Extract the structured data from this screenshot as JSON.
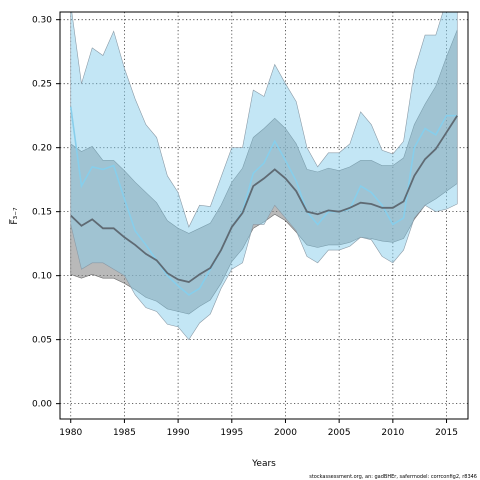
{
  "chart_data": {
    "type": "line",
    "title": "",
    "xlabel": "Years",
    "ylabel": "F̅₃₋₇",
    "xlim": [
      1979,
      2017
    ],
    "ylim": [
      -0.012,
      0.306
    ],
    "x_ticks": [
      1980,
      1985,
      1990,
      1995,
      2000,
      2005,
      2010,
      2015
    ],
    "y_ticks": [
      0.0,
      0.05,
      0.1,
      0.15,
      0.2,
      0.25,
      0.3
    ],
    "y_tick_labels": [
      "0.00",
      "0.05",
      "0.10",
      "0.15",
      "0.20",
      "0.25",
      "0.30"
    ],
    "grid": true,
    "footnote": "stockassessment.org, an: gadBHEr, safermodel: corrconfig2, r8346",
    "colors": {
      "light_band_fill": "#87ceeb",
      "light_band_edge": "#8a9aa6",
      "light_line": "#87ceeb",
      "dark_band_fill": "#808080",
      "dark_band_edge": "#6e6e6e",
      "dark_line": "#5f6a73",
      "grid": "#333333"
    },
    "x": [
      1980,
      1981,
      1982,
      1983,
      1984,
      1985,
      1986,
      1987,
      1988,
      1989,
      1990,
      1991,
      1992,
      1993,
      1994,
      1995,
      1996,
      1997,
      1998,
      1999,
      2000,
      2001,
      2002,
      2003,
      2004,
      2005,
      2006,
      2007,
      2008,
      2009,
      2010,
      2011,
      2012,
      2013,
      2014,
      2015,
      2016
    ],
    "series": [
      {
        "values": [
          0.232,
          0.17,
          0.185,
          0.183,
          0.186,
          0.16,
          0.135,
          0.124,
          0.112,
          0.1,
          0.092,
          0.085,
          0.09,
          0.105,
          0.12,
          0.138,
          0.15,
          0.18,
          0.188,
          0.205,
          0.19,
          0.174,
          0.15,
          0.14,
          0.15,
          0.15,
          0.152,
          0.17,
          0.165,
          0.155,
          0.14,
          0.145,
          0.2,
          0.215,
          0.21,
          0.225,
          0.225
        ],
        "lower": [
          0.14,
          0.105,
          0.11,
          0.11,
          0.105,
          0.1,
          0.085,
          0.075,
          0.072,
          0.062,
          0.06,
          0.05,
          0.063,
          0.07,
          0.09,
          0.105,
          0.11,
          0.14,
          0.14,
          0.155,
          0.145,
          0.135,
          0.115,
          0.11,
          0.12,
          0.12,
          0.123,
          0.13,
          0.128,
          0.115,
          0.11,
          0.12,
          0.145,
          0.155,
          0.15,
          0.152,
          0.156
        ],
        "upper": [
          0.312,
          0.25,
          0.278,
          0.272,
          0.291,
          0.262,
          0.238,
          0.218,
          0.208,
          0.178,
          0.165,
          0.138,
          0.155,
          0.154,
          0.177,
          0.2,
          0.2,
          0.245,
          0.24,
          0.265,
          0.25,
          0.236,
          0.2,
          0.185,
          0.196,
          0.196,
          0.203,
          0.228,
          0.218,
          0.198,
          0.195,
          0.205,
          0.26,
          0.288,
          0.288,
          0.315,
          0.315
        ]
      },
      {
        "values": [
          0.147,
          0.139,
          0.144,
          0.137,
          0.137,
          0.13,
          0.124,
          0.117,
          0.112,
          0.102,
          0.097,
          0.095,
          0.101,
          0.106,
          0.12,
          0.138,
          0.149,
          0.17,
          0.176,
          0.183,
          0.176,
          0.166,
          0.15,
          0.148,
          0.151,
          0.15,
          0.153,
          0.157,
          0.156,
          0.153,
          0.153,
          0.158,
          0.178,
          0.191,
          0.199,
          0.212,
          0.225
        ],
        "lower": [
          0.101,
          0.098,
          0.101,
          0.098,
          0.098,
          0.094,
          0.089,
          0.083,
          0.08,
          0.074,
          0.072,
          0.07,
          0.076,
          0.081,
          0.094,
          0.111,
          0.121,
          0.137,
          0.142,
          0.148,
          0.143,
          0.134,
          0.124,
          0.122,
          0.124,
          0.124,
          0.126,
          0.13,
          0.129,
          0.127,
          0.126,
          0.129,
          0.144,
          0.155,
          0.16,
          0.166,
          0.172
        ],
        "upper": [
          0.203,
          0.197,
          0.201,
          0.19,
          0.19,
          0.182,
          0.173,
          0.165,
          0.157,
          0.143,
          0.137,
          0.133,
          0.137,
          0.141,
          0.155,
          0.173,
          0.184,
          0.208,
          0.215,
          0.223,
          0.215,
          0.203,
          0.183,
          0.181,
          0.184,
          0.182,
          0.185,
          0.19,
          0.19,
          0.186,
          0.186,
          0.192,
          0.218,
          0.234,
          0.248,
          0.271,
          0.292
        ]
      }
    ]
  }
}
